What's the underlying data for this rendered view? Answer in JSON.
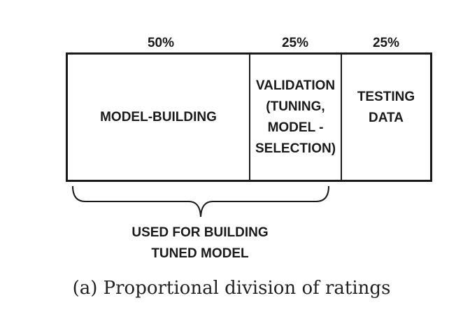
{
  "segments": [
    {
      "percent": "50%",
      "label": "MODEL-BUILDING",
      "share": 0.5
    },
    {
      "percent": "25%",
      "label": "VALIDATION\n(TUNING,\nMODEL -\nSELECTION)",
      "share": 0.25
    },
    {
      "percent": "25%",
      "label": "TESTING\nDATA",
      "share": 0.25
    }
  ],
  "brace_label": "USED FOR BUILDING\nTUNED MODEL",
  "caption": "(a) Proportional division of ratings"
}
